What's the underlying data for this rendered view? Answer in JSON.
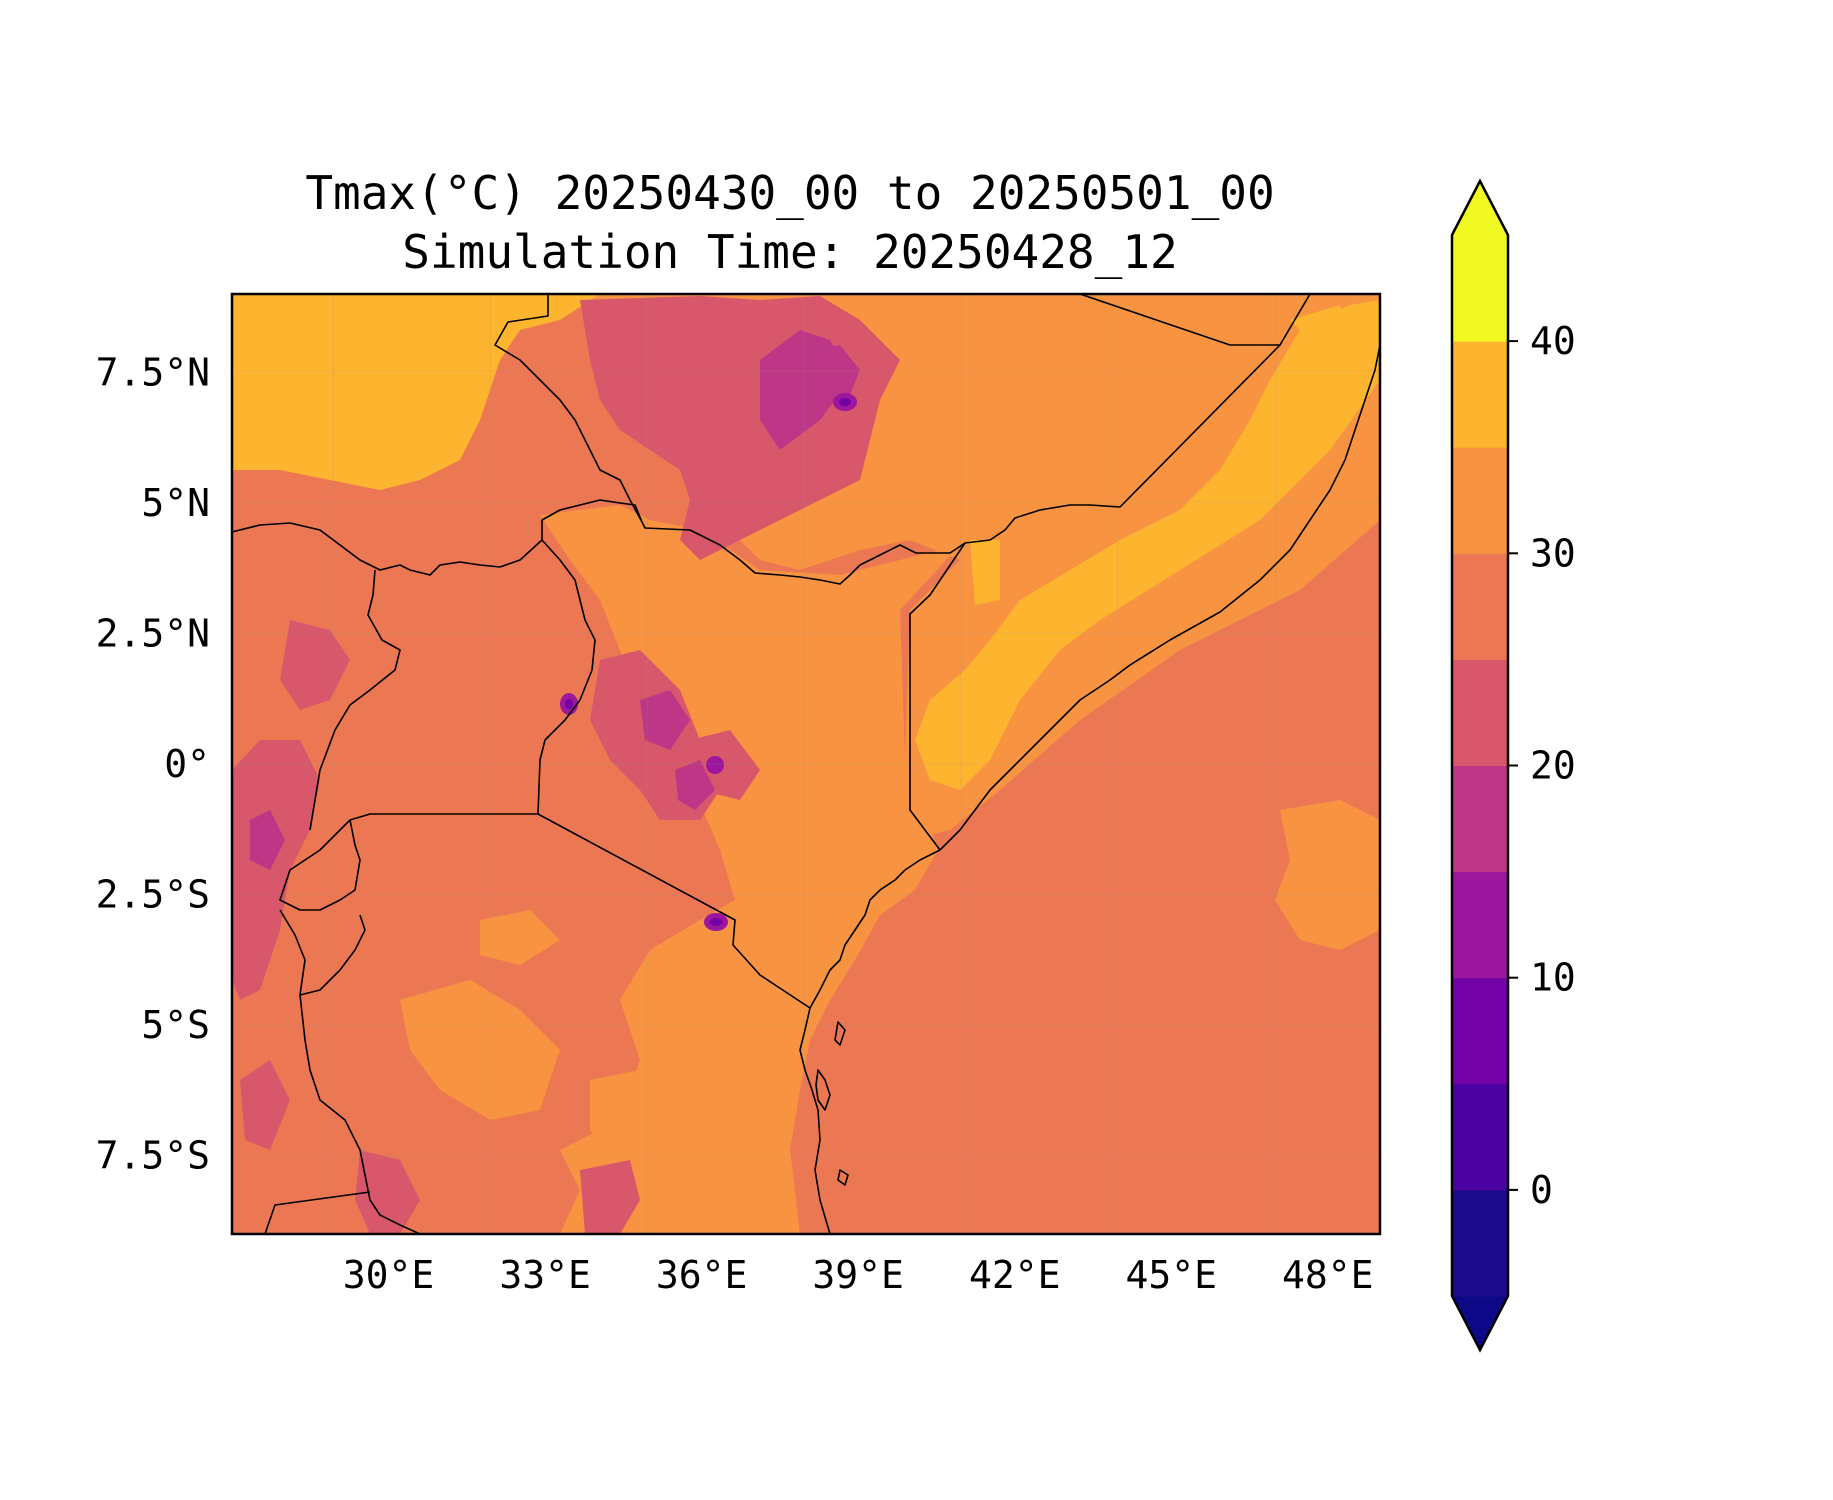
{
  "title": {
    "line1": "Tmax(°C) 20250430_00 to 20250501_00",
    "line2": "Simulation Time: 20250428_12"
  },
  "map": {
    "lon_range": [
      27,
      49
    ],
    "lat_range": [
      -9,
      9
    ],
    "x_ticks": [
      {
        "value": 30,
        "label": "30°E"
      },
      {
        "value": 33,
        "label": "33°E"
      },
      {
        "value": 36,
        "label": "36°E"
      },
      {
        "value": 39,
        "label": "39°E"
      },
      {
        "value": 42,
        "label": "42°E"
      },
      {
        "value": 45,
        "label": "45°E"
      },
      {
        "value": 48,
        "label": "48°E"
      }
    ],
    "y_ticks": [
      {
        "value": 7.5,
        "label": "7.5°N"
      },
      {
        "value": 5,
        "label": "5°N"
      },
      {
        "value": 2.5,
        "label": "2.5°N"
      },
      {
        "value": 0,
        "label": "0°"
      },
      {
        "value": -2.5,
        "label": "2.5°S"
      },
      {
        "value": -5,
        "label": "5°S"
      },
      {
        "value": -7.5,
        "label": "7.5°S"
      }
    ],
    "gridlines": true
  },
  "colorbar": {
    "levels": [
      -5,
      0,
      5,
      10,
      15,
      20,
      25,
      30,
      35,
      40,
      45
    ],
    "colors": [
      "#1b0b8c",
      "#4a03a0",
      "#7201a8",
      "#9c179e",
      "#bd3786",
      "#d8576b",
      "#ec7853",
      "#f89441",
      "#fdb42f",
      "#f0f921"
    ],
    "under_color": "#0d0887",
    "over_color": "#f0f921",
    "ticks": [
      {
        "value": 0,
        "label": "0"
      },
      {
        "value": 10,
        "label": "10"
      },
      {
        "value": 20,
        "label": "20"
      },
      {
        "value": 30,
        "label": "30"
      },
      {
        "value": 40,
        "label": "40"
      }
    ],
    "extend": "both"
  }
}
